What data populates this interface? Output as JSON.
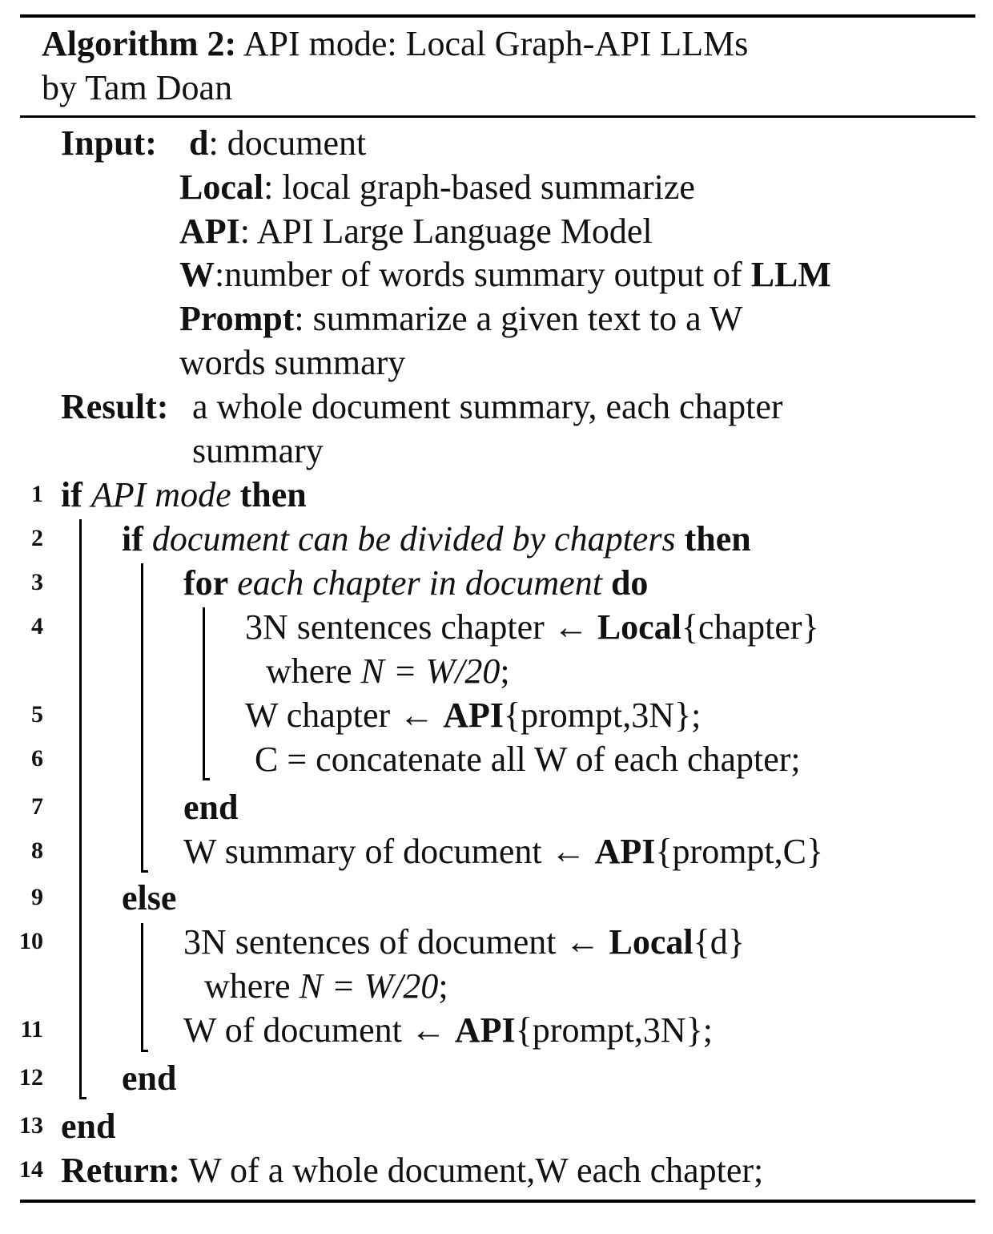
{
  "header": {
    "label": "Algorithm 2:",
    "title": "API mode: Local Graph-API LLMs",
    "author": "by Tam Doan"
  },
  "input": {
    "label": "Input:",
    "params": [
      {
        "name": "d",
        "desc": ": document"
      },
      {
        "name": "Local",
        "desc": ": local graph-based summarize"
      },
      {
        "name": "API",
        "desc": ": API Large Language Model"
      },
      {
        "name": "W",
        "desc": ":number of words summary output of ",
        "desc_bold": "LLM"
      },
      {
        "name": "Prompt",
        "desc": ": summarize a given text to a W",
        "desc_cont": "words summary"
      }
    ]
  },
  "result": {
    "label": "Result:",
    "text": "a whole document summary, each chapter",
    "text_cont": "summary"
  },
  "lines": [
    {
      "num": "1",
      "kw1": "if",
      "cond": "API mode",
      "kw2": "then"
    },
    {
      "num": "2",
      "kw1": "if",
      "cond": "document can be divided by chapters",
      "kw2": "then"
    },
    {
      "num": "3",
      "kw1": "for",
      "cond": "each chapter in document",
      "kw2": "do"
    },
    {
      "num": "4",
      "pre": "3N sentences chapter ← ",
      "fn": "Local",
      "arg": "{chapter}",
      "cont_pre": "where ",
      "cont_math": "N = W/20",
      "cont_post": ";"
    },
    {
      "num": "5",
      "pre": "W chapter ← ",
      "fn": "API",
      "arg": "{prompt,3N};"
    },
    {
      "num": "6",
      "text": "C = concatenate all W of each chapter;"
    },
    {
      "num": "7",
      "kw": "end"
    },
    {
      "num": "8",
      "pre": "W summary of document ← ",
      "fn": "API",
      "arg": "{prompt,C}"
    },
    {
      "num": "9",
      "kw": "else"
    },
    {
      "num": "10",
      "pre": "3N sentences of document ← ",
      "fn": "Local",
      "arg": "{d}",
      "cont_pre": "where ",
      "cont_math": "N = W/20",
      "cont_post": ";"
    },
    {
      "num": "11",
      "pre": "W of document ← ",
      "fn": "API",
      "arg": "{prompt,3N};"
    },
    {
      "num": "12",
      "kw": "end"
    },
    {
      "num": "13",
      "kw": "end"
    },
    {
      "num": "14",
      "kw": "Return:",
      "text": "W of a whole document,W each chapter;"
    }
  ]
}
